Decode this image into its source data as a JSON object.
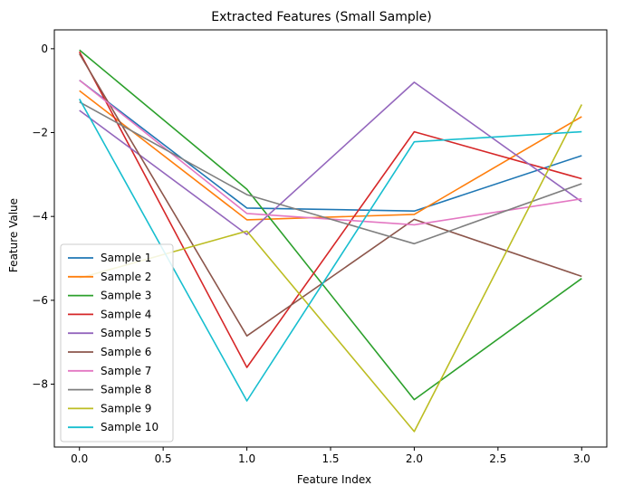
{
  "chart_data": {
    "type": "line",
    "title": "Extracted Features (Small Sample)",
    "xlabel": "Feature Index",
    "ylabel": "Feature Value",
    "x": [
      0,
      1,
      2,
      3
    ],
    "xlim": [
      -0.15,
      3.15
    ],
    "ylim": [
      -9.5,
      0.45
    ],
    "xticks": [
      0.0,
      0.5,
      1.0,
      1.5,
      2.0,
      2.5,
      3.0
    ],
    "xtick_labels": [
      "0.0",
      "0.5",
      "1.0",
      "1.5",
      "2.0",
      "2.5",
      "3.0"
    ],
    "yticks": [
      0,
      -2,
      -4,
      -6,
      -8
    ],
    "ytick_labels": [
      "0",
      "−2",
      "−4",
      "−6",
      "−8"
    ],
    "grid": false,
    "legend_position": "lower-left",
    "series": [
      {
        "name": "Sample 1",
        "color": "#1f77b4",
        "values": [
          -0.75,
          -3.8,
          -3.87,
          -2.55
        ]
      },
      {
        "name": "Sample 2",
        "color": "#ff7f0e",
        "values": [
          -1.0,
          -4.08,
          -3.95,
          -1.62
        ]
      },
      {
        "name": "Sample 3",
        "color": "#2ca02c",
        "values": [
          -0.03,
          -3.35,
          -8.37,
          -5.48
        ]
      },
      {
        "name": "Sample 4",
        "color": "#d62728",
        "values": [
          -0.07,
          -7.6,
          -1.98,
          -3.1
        ]
      },
      {
        "name": "Sample 5",
        "color": "#9467bd",
        "values": [
          -1.47,
          -4.43,
          -0.8,
          -3.65
        ]
      },
      {
        "name": "Sample 6",
        "color": "#8c564b",
        "values": [
          -0.12,
          -6.85,
          -4.07,
          -5.43
        ]
      },
      {
        "name": "Sample 7",
        "color": "#e377c2",
        "values": [
          -0.75,
          -3.93,
          -4.2,
          -3.58
        ]
      },
      {
        "name": "Sample 8",
        "color": "#7f7f7f",
        "values": [
          -1.27,
          -3.48,
          -4.65,
          -3.22
        ]
      },
      {
        "name": "Sample 9",
        "color": "#bcbd22",
        "values": [
          -5.47,
          -4.35,
          -9.13,
          -1.33
        ]
      },
      {
        "name": "Sample 10",
        "color": "#17becf",
        "values": [
          -1.2,
          -8.4,
          -2.22,
          -1.98
        ]
      }
    ]
  }
}
